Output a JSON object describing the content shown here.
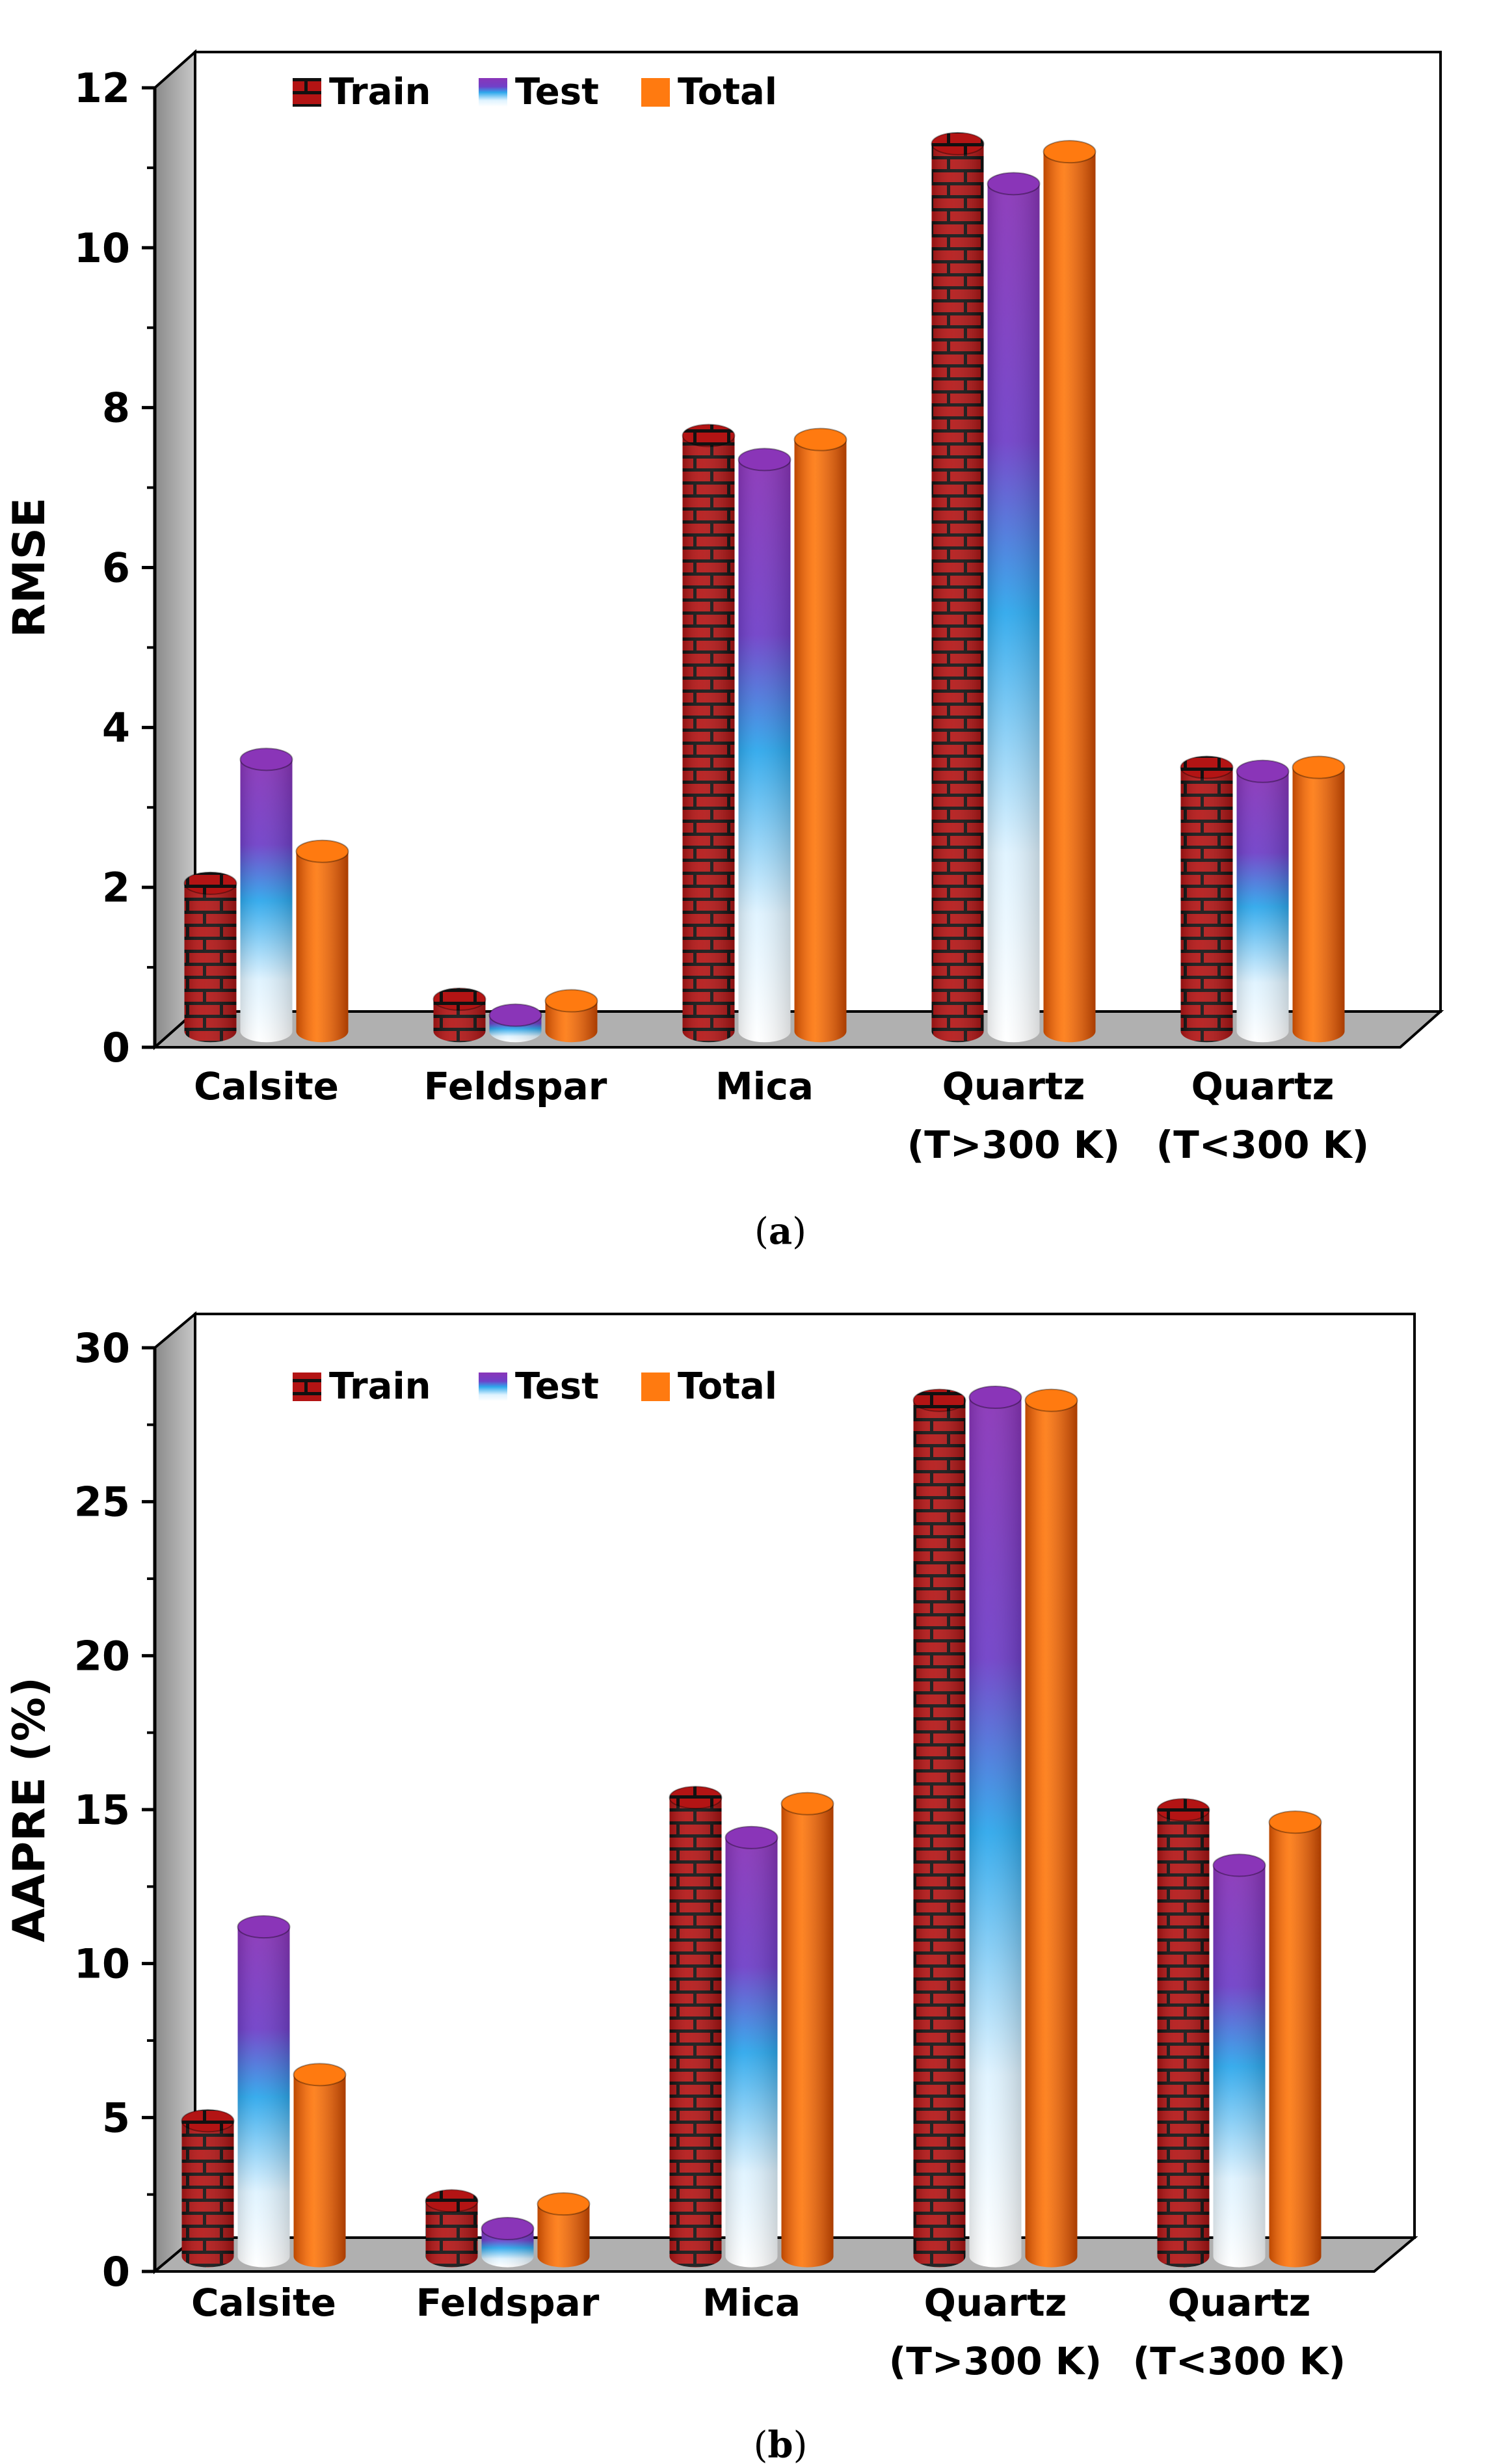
{
  "chart_data": [
    {
      "type": "bar",
      "panel_label": "a",
      "title": "",
      "xlabel": "",
      "ylabel": "RMSE",
      "ylim": [
        0,
        12
      ],
      "yticks": [
        "0",
        "2",
        "4",
        "6",
        "8",
        "10",
        "12"
      ],
      "categories": [
        {
          "line1": "Calsite",
          "line2": ""
        },
        {
          "line1": "Feldspar",
          "line2": ""
        },
        {
          "line1": "Mica",
          "line2": ""
        },
        {
          "line1": "Quartz",
          "line2": "(T>300 K)"
        },
        {
          "line1": "Quartz",
          "line2": "(T<300 K)"
        }
      ],
      "series": [
        {
          "name": "Train",
          "values": [
            1.85,
            0.4,
            7.45,
            11.1,
            3.3
          ]
        },
        {
          "name": "Test",
          "values": [
            3.4,
            0.2,
            7.15,
            10.6,
            3.25
          ]
        },
        {
          "name": "Total",
          "values": [
            2.25,
            0.38,
            7.4,
            11.0,
            3.3
          ]
        }
      ],
      "legend_position": "top-left",
      "grid": false
    },
    {
      "type": "bar",
      "panel_label": "b",
      "title": "",
      "xlabel": "",
      "ylabel": "AAPRE (%)",
      "ylim": [
        0,
        30
      ],
      "yticks": [
        "0",
        "5",
        "10",
        "15",
        "20",
        "25",
        "30"
      ],
      "categories": [
        {
          "line1": "Calsite",
          "line2": ""
        },
        {
          "line1": "Feldspar",
          "line2": ""
        },
        {
          "line1": "Mica",
          "line2": ""
        },
        {
          "line1": "Quartz",
          "line2": "(T>300 K)"
        },
        {
          "line1": "Quartz",
          "line2": "(T<300 K)"
        }
      ],
      "series": [
        {
          "name": "Train",
          "values": [
            4.4,
            1.8,
            14.9,
            27.8,
            14.5
          ]
        },
        {
          "name": "Test",
          "values": [
            10.7,
            0.9,
            13.6,
            27.9,
            12.7
          ]
        },
        {
          "name": "Total",
          "values": [
            5.9,
            1.7,
            14.7,
            27.8,
            14.1
          ]
        }
      ],
      "legend_position": "top-left",
      "grid": false
    }
  ],
  "colors": {
    "train_brick": "#b31414",
    "train_mortar": "#111111",
    "test_top": "#8a35b8",
    "test_mid": "#2ea8ec",
    "test_bottom": "#ffffff",
    "total": "#ff6a00",
    "side_wall": "#a8a8a8",
    "floor": "#b0b0b0"
  }
}
